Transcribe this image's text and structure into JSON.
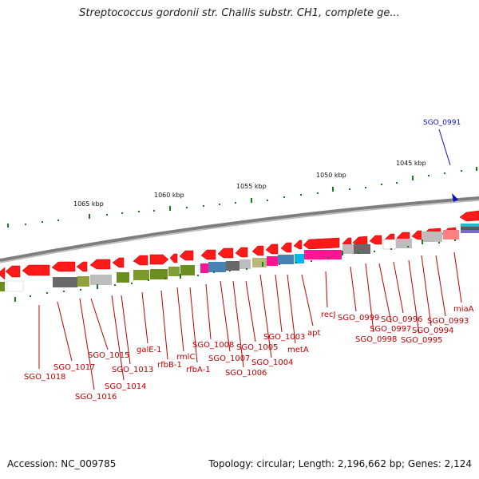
{
  "title": "Streptococcus gordonii str. Challis substr. CH1, complete ge...",
  "footer": {
    "accession": "Accession: NC_009785",
    "summary": "Topology: circular; Length: 2,196,662 bp; Genes: 2,124"
  },
  "colors": {
    "gene_arrow": "#ff0000",
    "label": "#c00000",
    "backbone": "#8c8c8c",
    "tick": "#1e7a1e",
    "highlight": "#1010c0"
  },
  "highlight": {
    "label": "SGO_0991",
    "marker_icon": "blue-arrow-icon"
  },
  "scale_labels": [
    "1065 kbp",
    "1060 kbp",
    "1055 kbp",
    "1050 kbp",
    "1045 kbp"
  ],
  "gene_labels": [
    "SGO_1018",
    "SGO_1017",
    "SGO_1016",
    "SGO_1015",
    "SGO_1014",
    "SGO_1013",
    "galE-1",
    "rfbB-1",
    "rmlC",
    "rfbA-1",
    "SGO_1008",
    "SGO_1007",
    "SGO_1006",
    "SGO_1005",
    "SGO_1004",
    "SGO_1003",
    "metA",
    "apt",
    "recJ",
    "SGO_0999",
    "SGO_0998",
    "SGO_0997",
    "SGO_0996",
    "SGO_0995",
    "SGO_0994",
    "SGO_0993",
    "miaA"
  ]
}
